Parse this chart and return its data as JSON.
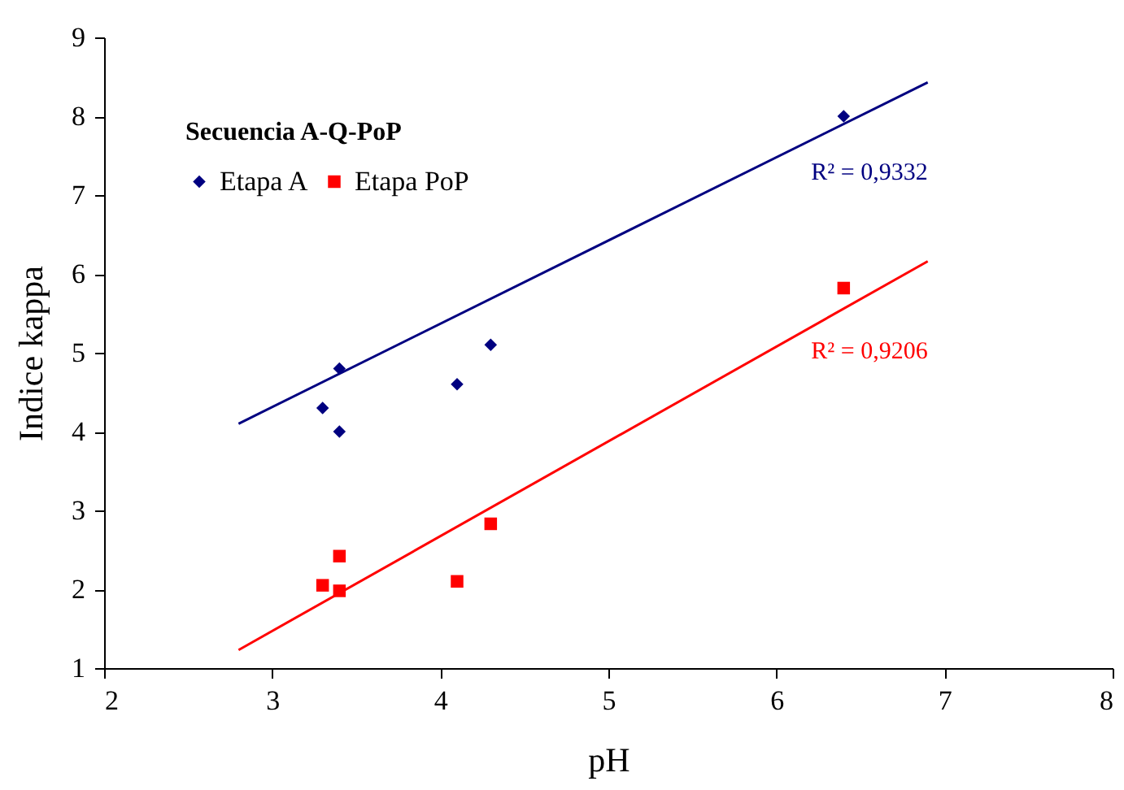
{
  "chart_data": {
    "type": "scatter",
    "xlabel": "pH",
    "ylabel": "Indice kappa",
    "legend_title": "Secuencia A-Q-PoP",
    "legend": "top left",
    "grid": false,
    "xlim": [
      2,
      8
    ],
    "xticks": [
      2,
      3,
      4,
      5,
      6,
      7,
      8
    ],
    "ylim": [
      1,
      9
    ],
    "yticks": [
      1,
      2,
      3,
      4,
      5,
      6,
      7,
      8,
      9
    ],
    "series": [
      {
        "name": "Etapa A",
        "color": "#000080",
        "marker": "diamond",
        "x": [
          3.3,
          3.4,
          3.4,
          4.1,
          4.3,
          6.4
        ],
        "values": [
          4.3,
          4.8,
          4.0,
          4.6,
          5.1,
          8.0
        ]
      },
      {
        "name": "Etapa PoP",
        "color": "#ff0000",
        "marker": "square",
        "x": [
          3.3,
          3.4,
          3.4,
          4.1,
          4.3,
          6.4
        ],
        "values": [
          2.05,
          2.42,
          1.98,
          2.1,
          2.83,
          5.82
        ]
      },
      {
        "type": "line",
        "color": "#000080",
        "x": [
          2.8,
          6.9
        ],
        "values": [
          4.1,
          8.43
        ]
      },
      {
        "type": "line",
        "color": "#ff0000",
        "x": [
          2.8,
          6.9
        ],
        "values": [
          1.23,
          6.16
        ]
      }
    ],
    "annotations": [
      "R² = 0,9332",
      "R² = 0,9206"
    ]
  }
}
